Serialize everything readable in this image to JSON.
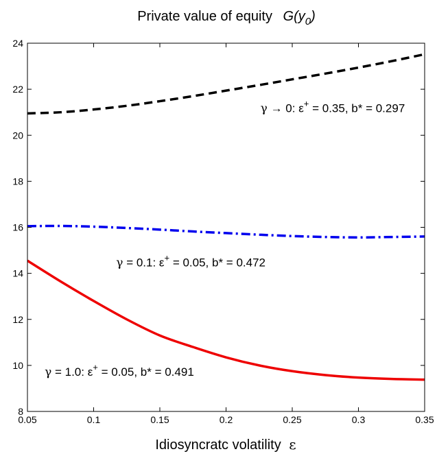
{
  "chart_data": {
    "type": "line",
    "title_parts": {
      "text": "Private value of equity",
      "func": "G(y",
      "sub": "0",
      "close": ")"
    },
    "xlabel_parts": {
      "text": "Idiosyncratc volatility",
      "symbol": "ε"
    },
    "ylabel": "",
    "xlim": [
      0.05,
      0.35
    ],
    "ylim": [
      8,
      24
    ],
    "xticks": [
      0.05,
      0.1,
      0.15,
      0.2,
      0.25,
      0.3,
      0.35
    ],
    "xtick_labels": [
      "0.05",
      "0.1",
      "0.15",
      "0.2",
      "0.25",
      "0.3",
      "0.35"
    ],
    "yticks": [
      8,
      10,
      12,
      14,
      16,
      18,
      20,
      22,
      24
    ],
    "ytick_labels": [
      "8",
      "10",
      "12",
      "14",
      "16",
      "18",
      "20",
      "22",
      "24"
    ],
    "grid": false,
    "series": [
      {
        "style": "dashed",
        "color": "#000000",
        "x": [
          0.05,
          0.075,
          0.1,
          0.125,
          0.15,
          0.175,
          0.2,
          0.225,
          0.25,
          0.275,
          0.3,
          0.325,
          0.35
        ],
        "y": [
          20.95,
          21.0,
          21.12,
          21.28,
          21.48,
          21.7,
          21.94,
          22.18,
          22.43,
          22.68,
          22.94,
          23.22,
          23.52
        ]
      },
      {
        "style": "dashdot",
        "color": "#0000ee",
        "x": [
          0.05,
          0.075,
          0.1,
          0.125,
          0.15,
          0.175,
          0.2,
          0.225,
          0.25,
          0.275,
          0.3,
          0.325,
          0.35
        ],
        "y": [
          16.05,
          16.06,
          16.03,
          15.97,
          15.9,
          15.82,
          15.75,
          15.68,
          15.62,
          15.58,
          15.56,
          15.58,
          15.6
        ]
      },
      {
        "style": "solid",
        "color": "#ee0000",
        "x": [
          0.05,
          0.075,
          0.1,
          0.125,
          0.15,
          0.175,
          0.2,
          0.225,
          0.25,
          0.275,
          0.3,
          0.325,
          0.35
        ],
        "y": [
          14.55,
          13.65,
          12.8,
          12.0,
          11.3,
          10.8,
          10.35,
          10.0,
          9.75,
          9.58,
          9.47,
          9.41,
          9.38
        ]
      }
    ],
    "annotations": [
      {
        "id": "gamma-0",
        "gamma": "γ",
        "relation": " → 0:  ε",
        "sup": "+",
        "rest": " = 0.35, b* = 0.297",
        "x": 0.226,
        "y": 21.0
      },
      {
        "id": "gamma-01",
        "gamma": "γ",
        "relation": " = 0.1:  ε",
        "sup": "+",
        "rest": " = 0.05, b* = 0.472",
        "x": 0.117,
        "y": 14.3
      },
      {
        "id": "gamma-10",
        "gamma": "γ",
        "relation": " = 1.0:  ε",
        "sup": "+",
        "rest": " = 0.05, b* = 0.491",
        "x": 0.063,
        "y": 9.55
      }
    ]
  }
}
